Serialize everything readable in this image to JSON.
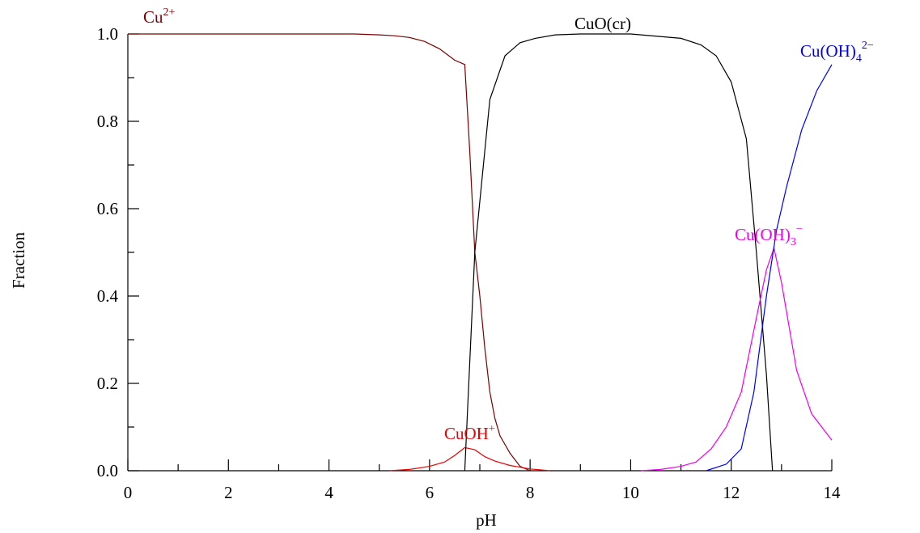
{
  "chart_data": {
    "type": "line",
    "title": "",
    "xlabel": "pH",
    "ylabel": "Fraction",
    "xlim": [
      0,
      14
    ],
    "ylim": [
      0,
      1
    ],
    "x_ticks": [
      "0",
      "2",
      "4",
      "6",
      "8",
      "10",
      "12",
      "14"
    ],
    "y_ticks": [
      "0.0",
      "0.2",
      "0.4",
      "0.6",
      "0.8",
      "1.0"
    ],
    "grid": false,
    "legend": "none",
    "series": [
      {
        "key": "cu2",
        "name_parts": [
          "Cu",
          "2+",
          ""
        ],
        "color": "#7a0000",
        "x": [
          0,
          1,
          2,
          3,
          4,
          4.5,
          5,
          5.3,
          5.6,
          5.9,
          6.2,
          6.5,
          6.7,
          6.8,
          6.9,
          7.0,
          7.1,
          7.2,
          7.3,
          7.4,
          7.6,
          7.8,
          8.0
        ],
        "y": [
          1.0,
          1.0,
          1.0,
          1.0,
          1.0,
          1.0,
          0.998,
          0.996,
          0.992,
          0.983,
          0.966,
          0.94,
          0.93,
          0.73,
          0.5,
          0.4,
          0.28,
          0.18,
          0.12,
          0.08,
          0.04,
          0.01,
          0.0
        ]
      },
      {
        "key": "cuoh",
        "name_parts": [
          "CuOH",
          "+",
          ""
        ],
        "color": "#ee0000",
        "x": [
          5.2,
          5.6,
          6.0,
          6.3,
          6.5,
          6.7,
          6.9,
          7.1,
          7.3,
          7.6,
          8.0,
          8.4
        ],
        "y": [
          0.0,
          0.003,
          0.01,
          0.02,
          0.035,
          0.053,
          0.048,
          0.032,
          0.022,
          0.012,
          0.004,
          0.0
        ]
      },
      {
        "key": "cuo",
        "name_parts": [
          "CuO(cr)",
          "",
          ""
        ],
        "color": "#000000",
        "x": [
          6.7,
          6.9,
          7.2,
          7.5,
          7.8,
          8.1,
          8.5,
          9.0,
          10.0,
          11.0,
          11.4,
          11.7,
          12.0,
          12.3,
          12.5,
          12.7,
          12.82
        ],
        "y": [
          0.0,
          0.5,
          0.85,
          0.95,
          0.98,
          0.99,
          0.998,
          1.0,
          1.0,
          0.99,
          0.975,
          0.95,
          0.89,
          0.76,
          0.5,
          0.22,
          0.0
        ]
      },
      {
        "key": "cuoh3",
        "name_parts": [
          "Cu(OH)",
          "−",
          "3"
        ],
        "color": "#ee00ee",
        "x": [
          10.2,
          10.6,
          11.0,
          11.3,
          11.6,
          11.9,
          12.2,
          12.5,
          12.7,
          12.85,
          13.0,
          13.3,
          13.6,
          14.0
        ],
        "y": [
          0.0,
          0.003,
          0.01,
          0.02,
          0.05,
          0.1,
          0.18,
          0.35,
          0.46,
          0.51,
          0.43,
          0.23,
          0.13,
          0.07
        ]
      },
      {
        "key": "cuoh4",
        "name_parts": [
          "Cu(OH)",
          "2−",
          "4"
        ],
        "color": "#0000ee",
        "x": [
          11.5,
          11.9,
          12.2,
          12.45,
          12.7,
          12.9,
          13.1,
          13.4,
          13.7,
          14.0
        ],
        "y": [
          0.0,
          0.015,
          0.05,
          0.18,
          0.4,
          0.55,
          0.65,
          0.78,
          0.87,
          0.93
        ]
      }
    ]
  }
}
